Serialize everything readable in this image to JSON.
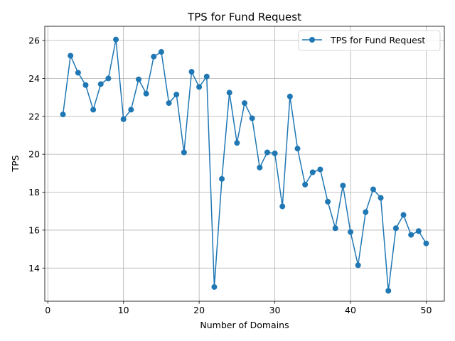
{
  "chart_data": {
    "type": "line",
    "title": "TPS for Fund Request",
    "xlabel": "Number of Domains",
    "ylabel": "TPS",
    "xlim": [
      -0.4,
      52.4
    ],
    "ylim": [
      12.25,
      26.75
    ],
    "xticks": [
      0,
      10,
      20,
      30,
      40,
      50
    ],
    "yticks": [
      14,
      16,
      18,
      20,
      22,
      24,
      26
    ],
    "grid": true,
    "legend_position": "top-right",
    "color": "#1f77b4",
    "series": [
      {
        "name": "TPS for Fund Request",
        "x": [
          2,
          3,
          4,
          5,
          6,
          7,
          8,
          9,
          10,
          11,
          12,
          13,
          14,
          15,
          16,
          17,
          18,
          19,
          20,
          21,
          22,
          23,
          24,
          25,
          26,
          27,
          28,
          29,
          30,
          31,
          32,
          33,
          34,
          35,
          36,
          37,
          38,
          39,
          40,
          41,
          42,
          43,
          44,
          45,
          46,
          47,
          48,
          49,
          50
        ],
        "y": [
          22.1,
          25.2,
          24.3,
          23.65,
          22.35,
          23.7,
          24.0,
          26.05,
          21.85,
          22.35,
          23.95,
          23.2,
          25.15,
          25.4,
          22.7,
          23.15,
          20.1,
          24.35,
          23.55,
          24.1,
          13.0,
          18.7,
          23.25,
          20.6,
          22.7,
          21.9,
          19.3,
          20.1,
          20.05,
          17.25,
          23.05,
          20.3,
          18.4,
          19.05,
          19.2,
          17.5,
          16.1,
          18.35,
          15.9,
          14.15,
          16.95,
          18.15,
          17.7,
          12.8,
          16.1,
          16.8,
          15.75,
          15.95,
          15.3
        ]
      }
    ]
  }
}
